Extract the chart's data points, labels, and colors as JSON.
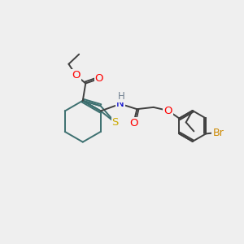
{
  "background_color": "#efefef",
  "bond_color": "#3d7070",
  "dark_bond": "#404040",
  "atom_colors": {
    "O": "#ff0000",
    "N": "#0000cd",
    "S": "#ccaa00",
    "Br": "#cc8800",
    "C": "#3d7070",
    "H": "#708090"
  },
  "lw": 1.4,
  "xlim": [
    0,
    10
  ],
  "ylim": [
    0,
    10
  ]
}
